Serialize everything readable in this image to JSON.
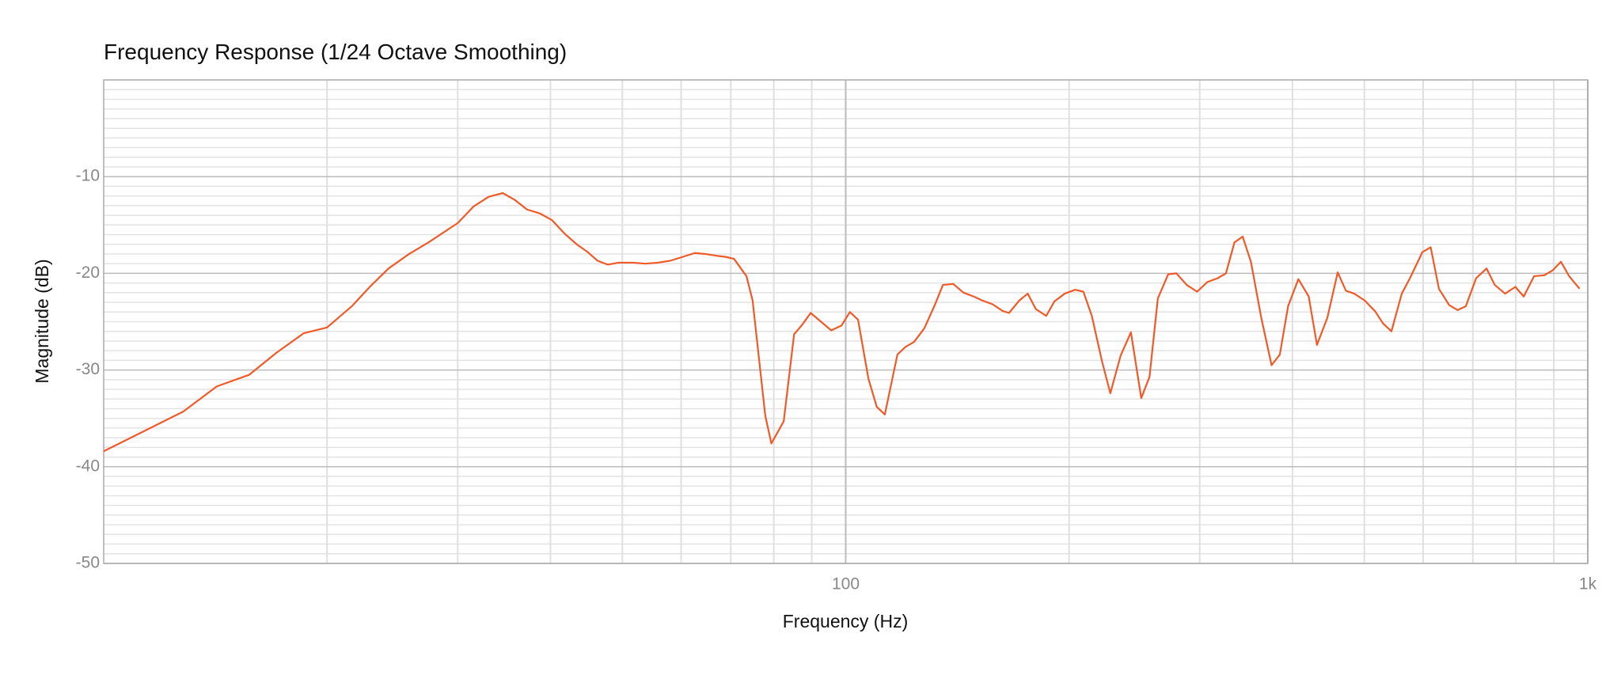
{
  "chart_data": {
    "type": "line",
    "title": "Frequency Response",
    "subtitle": "(1/24 Octave Smoothing)",
    "x_label": "Frequency (Hz)",
    "y_label": "Magnitude (dB)",
    "xscale": "log",
    "grid": true,
    "xlim": [
      10,
      1000
    ],
    "ylim": [
      -50,
      0
    ],
    "xticks": [
      100,
      {
        "value": 1000,
        "label": "1k"
      }
    ],
    "xminor": [
      20,
      30,
      40,
      50,
      60,
      70,
      80,
      90,
      200,
      300,
      400,
      500,
      600,
      700,
      800,
      900
    ],
    "yticks": [
      -10,
      -20,
      -30,
      -40,
      -50
    ],
    "yminor": [
      -1,
      -2,
      -3,
      -4,
      -5,
      -6,
      -7,
      -8,
      -9,
      -11,
      -12,
      -13,
      -14,
      -15,
      -16,
      -17,
      -18,
      -19,
      -21,
      -22,
      -23,
      -24,
      -25,
      -26,
      -27,
      -28,
      -29,
      -31,
      -32,
      -33,
      -34,
      -35,
      -36,
      -37,
      -38,
      -39,
      -41,
      -42,
      -43,
      -44,
      -45,
      -46,
      -47,
      -48,
      -49
    ],
    "x": [
      10.0,
      12.8,
      14.2,
      15.7,
      17.1,
      18.6,
      20.0,
      21.6,
      22.9,
      24.2,
      25.8,
      27.4,
      30.0,
      31.5,
      33.0,
      34.5,
      35.8,
      37.2,
      38.7,
      40.2,
      41.8,
      43.4,
      44.9,
      46.3,
      47.8,
      49.4,
      51.7,
      53.7,
      55.8,
      58.0,
      60.3,
      62.6,
      64.7,
      67.2,
      68.9,
      70.7,
      73.5,
      74.9,
      76.4,
      77.9,
      79.4,
      82.5,
      85.2,
      87.4,
      89.7,
      92.6,
      95.6,
      98.7,
      101.3,
      103.9,
      107.3,
      110.1,
      112.9,
      117.4,
      120.4,
      123.6,
      127.6,
      131.8,
      135.2,
      139.6,
      144.1,
      148.8,
      152.7,
      157.7,
      162.8,
      166.0,
      171.4,
      175.9,
      180.4,
      186.3,
      191.1,
      197.3,
      203.8,
      209.1,
      214.6,
      221.5,
      227.3,
      234.7,
      242.3,
      250.2,
      256.7,
      263.4,
      272.0,
      279.0,
      288.1,
      297.5,
      307.2,
      317.2,
      325.4,
      334.1,
      342.7,
      351.6,
      363.1,
      374.9,
      384.6,
      394.6,
      407.4,
      420.7,
      431.6,
      445.7,
      460.3,
      472.2,
      484.5,
      500.3,
      516.6,
      530.0,
      543.8,
      561.5,
      576.0,
      598.7,
      614.2,
      630.1,
      650.7,
      667.6,
      685.0,
      707.3,
      730.4,
      749.3,
      773.7,
      798.9,
      819.7,
      846.5,
      874.1,
      896.7,
      920.1,
      944.0,
      974.8
    ],
    "series": [
      {
        "color": "#f05a28",
        "values": [
          -38.4,
          -34.3,
          -31.7,
          -30.5,
          -28.2,
          -26.2,
          -25.6,
          -23.4,
          -21.3,
          -19.5,
          -18.0,
          -16.8,
          -14.8,
          -13.1,
          -12.1,
          -11.7,
          -12.4,
          -13.4,
          -13.8,
          -14.5,
          -15.9,
          -17.0,
          -17.8,
          -18.7,
          -19.1,
          -18.9,
          -18.9,
          -19.0,
          -18.9,
          -18.7,
          -18.3,
          -17.9,
          -18.0,
          -18.2,
          -18.3,
          -18.5,
          -20.3,
          -22.8,
          -28.8,
          -34.7,
          -37.6,
          -35.3,
          -26.3,
          -25.3,
          -24.1,
          -25.0,
          -25.9,
          -25.4,
          -24.0,
          -24.8,
          -30.9,
          -33.8,
          -34.6,
          -28.4,
          -27.6,
          -27.1,
          -25.7,
          -23.3,
          -21.2,
          -21.1,
          -22.0,
          -22.4,
          -22.8,
          -23.2,
          -23.9,
          -24.1,
          -22.8,
          -22.1,
          -23.7,
          -24.4,
          -22.9,
          -22.1,
          -21.7,
          -21.9,
          -24.4,
          -29.1,
          -32.4,
          -28.5,
          -26.1,
          -32.9,
          -30.7,
          -22.6,
          -20.1,
          -20.0,
          -21.2,
          -21.9,
          -20.9,
          -20.5,
          -20.0,
          -16.8,
          -16.2,
          -18.8,
          -24.6,
          -29.5,
          -28.4,
          -23.4,
          -20.6,
          -22.4,
          -27.4,
          -24.6,
          -19.9,
          -21.8,
          -22.1,
          -22.8,
          -23.9,
          -25.2,
          -26.0,
          -22.1,
          -20.5,
          -17.8,
          -17.3,
          -21.6,
          -23.3,
          -23.8,
          -23.4,
          -20.5,
          -19.5,
          -21.2,
          -22.1,
          -21.4,
          -22.4,
          -20.3,
          -20.2,
          -19.7,
          -18.8,
          -20.3,
          -21.6
        ]
      }
    ]
  }
}
